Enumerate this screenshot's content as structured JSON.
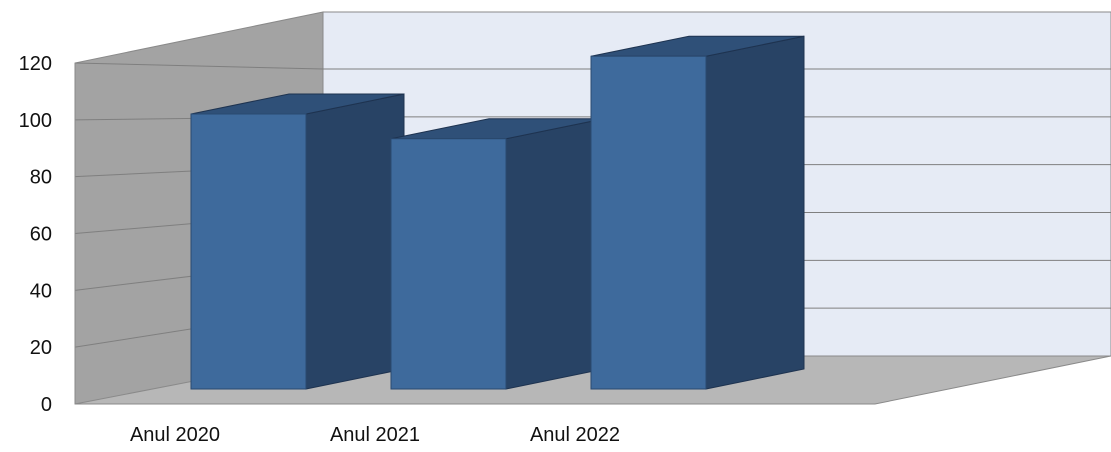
{
  "chart_data": {
    "type": "bar",
    "style": "3d-column",
    "title": "",
    "xlabel": "",
    "ylabel": "",
    "categories": [
      "Anul 2020",
      "Anul 2021",
      "Anul 2022"
    ],
    "values": [
      100,
      91,
      121
    ],
    "ylim": [
      0,
      120
    ],
    "yticks": [
      "0",
      "20",
      "40",
      "60",
      "80",
      "100",
      "120"
    ],
    "grid": true,
    "legend": "none"
  },
  "colors": {
    "bar_front": "#3e6a9c",
    "bar_side": "#284365",
    "bar_top": "#2f5078",
    "back_wall": "#e6ebf5",
    "side_wall": "#a3a3a3",
    "floor": "#b7b7b7",
    "gridline": "#7f7f7f"
  }
}
